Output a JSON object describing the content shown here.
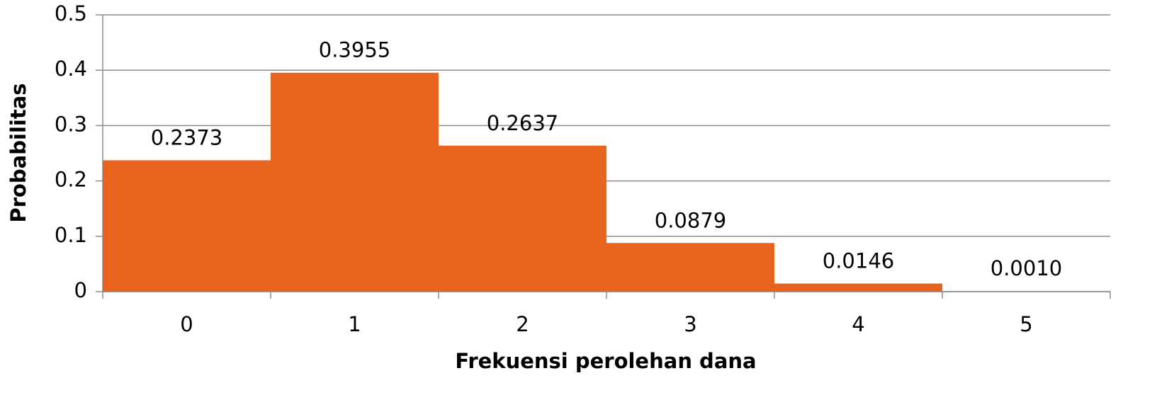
{
  "chart_data": {
    "type": "bar",
    "x_label": "Frekuensi perolehan dana",
    "y_label": "Probabilitas",
    "categories": [
      "0",
      "1",
      "2",
      "3",
      "4",
      "5"
    ],
    "values": [
      0.2373,
      0.3955,
      0.2637,
      0.0879,
      0.0146,
      0.001
    ],
    "value_labels": [
      "0.2373",
      "0.3955",
      "0.2637",
      "0.0879",
      "0.0146",
      "0.0010"
    ],
    "color": "#e8641e",
    "ylim": [
      0,
      0.5
    ],
    "yticks": [
      0,
      0.1,
      0.2,
      0.3,
      0.4,
      0.5
    ],
    "grid": true
  }
}
